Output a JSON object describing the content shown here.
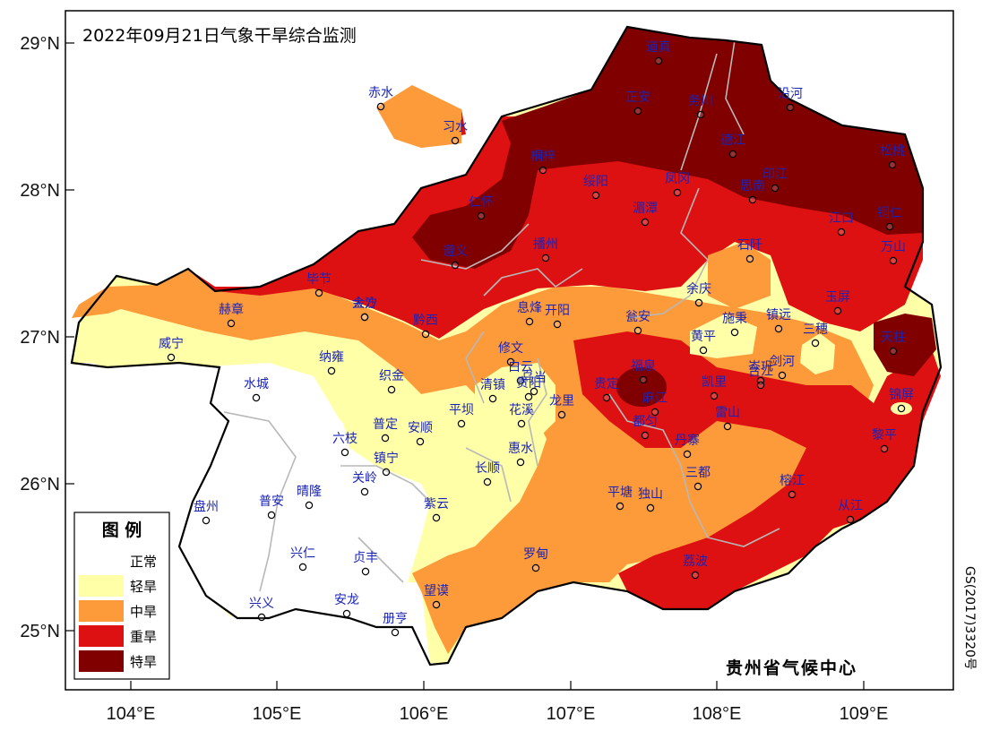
{
  "title": "2022年09月21日气象干旱综合监测",
  "credit": "贵州省气候中心",
  "map_number": "GS(2017)3320号",
  "y_axis_labels": [
    "29°N",
    "28°N",
    "27°N",
    "26°N",
    "25°N"
  ],
  "x_axis_labels": [
    "104°E",
    "105°E",
    "106°E",
    "107°E",
    "108°E",
    "109°E"
  ],
  "legend": {
    "title": "图  例",
    "items": [
      {
        "label": "正常",
        "color": "#ffffff"
      },
      {
        "label": "轻旱",
        "color": "#ffffa8"
      },
      {
        "label": "中旱",
        "color": "#fd9a3a"
      },
      {
        "label": "重旱",
        "color": "#dd1111"
      },
      {
        "label": "特旱",
        "color": "#800000"
      }
    ]
  },
  "cities": [
    "道真",
    "赤水",
    "正安",
    "务川",
    "沿河",
    "习水",
    "桐梓",
    "凤冈",
    "印江",
    "松桃",
    "绥阳",
    "湄潭",
    "德江",
    "思南",
    "仁怀",
    "江口",
    "铜仁",
    "遵义",
    "播州",
    "万山",
    "石阡",
    "金沙",
    "毕节",
    "赫章",
    "大方",
    "余庆",
    "黔西",
    "息烽",
    "开阳",
    "瓮安",
    "施秉",
    "镇远",
    "三穗",
    "玉屏",
    "岑巩",
    "天柱",
    "威宁",
    "纳雍",
    "修文",
    "黄平",
    "织金",
    "白云",
    "乌当",
    "清镇",
    "福泉",
    "凯里",
    "台江",
    "剑河",
    "水城",
    "贵阳",
    "贵定",
    "麻江",
    "雷山",
    "锦屏",
    "平坝",
    "花溪",
    "龙里",
    "都匀",
    "丹寨",
    "黎平",
    "普定",
    "安顺",
    "六枝",
    "镇宁",
    "惠水",
    "榕江",
    "关岭",
    "长顺",
    "三都",
    "平塘",
    "独山",
    "从江",
    "盘州",
    "普安",
    "晴隆",
    "紫云",
    "罗甸",
    "荔波",
    "兴仁",
    "贞丰",
    "望谟",
    "兴义",
    "安龙",
    "册亨"
  ]
}
